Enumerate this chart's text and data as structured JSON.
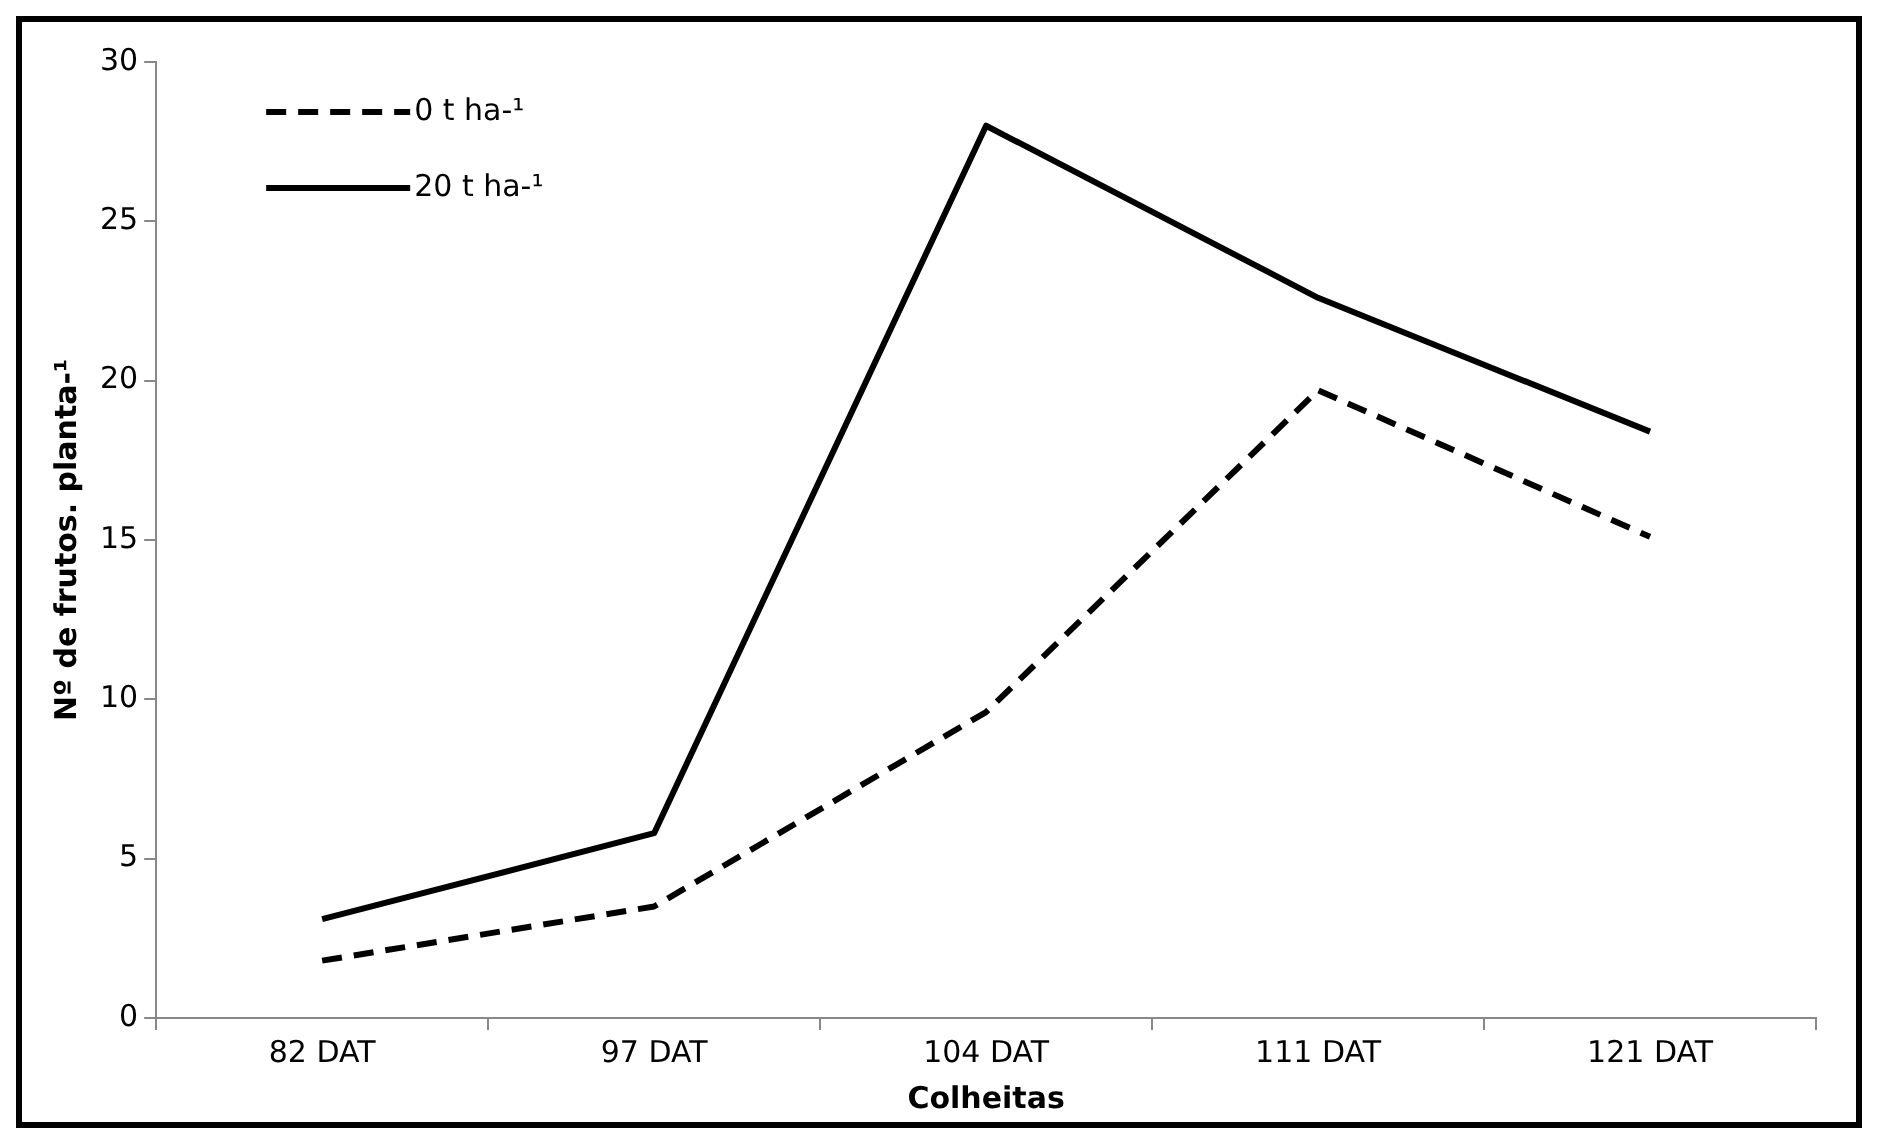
{
  "chart_data": {
    "type": "line",
    "xlabel": "Colheitas",
    "ylabel": "Nº de frutos. planta-¹",
    "categories": [
      "82 DAT",
      "97 DAT",
      "104 DAT",
      "111 DAT",
      "121 DAT"
    ],
    "series": [
      {
        "name": "0 t ha-¹",
        "color": "#000000",
        "line_style": "dashed",
        "values": [
          1.8,
          3.5,
          9.6,
          19.7,
          15.1
        ]
      },
      {
        "name": "20 t ha-¹",
        "color": "#000000",
        "line_style": "solid",
        "values": [
          3.1,
          5.8,
          28,
          22.6,
          18.4
        ]
      }
    ],
    "ylim": [
      0,
      30
    ],
    "yticks": [
      0,
      5,
      10,
      15,
      20,
      25,
      30
    ],
    "grid": false,
    "legend": "top left",
    "marker": "none"
  }
}
